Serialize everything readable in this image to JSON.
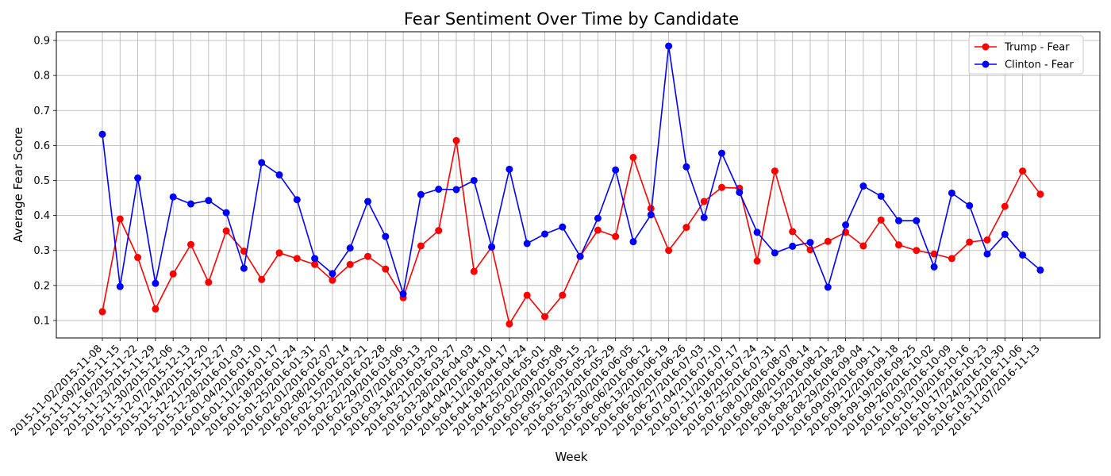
{
  "chart_data": {
    "type": "line",
    "title": "Fear Sentiment Over Time by Candidate",
    "xlabel": "Week",
    "ylabel": "Average Fear Score",
    "ylim": [
      0.05,
      0.925
    ],
    "yticks": [
      "0.1",
      "0.2",
      "0.3",
      "0.4",
      "0.5",
      "0.6",
      "0.7",
      "0.8",
      "0.9"
    ],
    "grid": true,
    "legend_position": "top-right",
    "categories": [
      "2015-11-02/2015-11-08",
      "2015-11-09/2015-11-15",
      "2015-11-16/2015-11-22",
      "2015-11-23/2015-11-29",
      "2015-11-30/2015-12-06",
      "2015-12-07/2015-12-13",
      "2015-12-14/2015-12-20",
      "2015-12-21/2015-12-27",
      "2015-12-28/2016-01-03",
      "2016-01-04/2016-01-10",
      "2016-01-11/2016-01-17",
      "2016-01-18/2016-01-24",
      "2016-01-25/2016-01-31",
      "2016-02-01/2016-02-07",
      "2016-02-08/2016-02-14",
      "2016-02-15/2016-02-21",
      "2016-02-22/2016-02-28",
      "2016-02-29/2016-03-06",
      "2016-03-07/2016-03-13",
      "2016-03-14/2016-03-20",
      "2016-03-21/2016-03-27",
      "2016-03-28/2016-04-03",
      "2016-04-04/2016-04-10",
      "2016-04-11/2016-04-17",
      "2016-04-18/2016-04-24",
      "2016-04-25/2016-05-01",
      "2016-05-02/2016-05-08",
      "2016-05-09/2016-05-15",
      "2016-05-16/2016-05-22",
      "2016-05-23/2016-05-29",
      "2016-05-30/2016-06-05",
      "2016-06-06/2016-06-12",
      "2016-06-13/2016-06-19",
      "2016-06-20/2016-06-26",
      "2016-06-27/2016-07-03",
      "2016-07-04/2016-07-10",
      "2016-07-11/2016-07-17",
      "2016-07-18/2016-07-24",
      "2016-07-25/2016-07-31",
      "2016-08-01/2016-08-07",
      "2016-08-08/2016-08-14",
      "2016-08-15/2016-08-21",
      "2016-08-22/2016-08-28",
      "2016-08-29/2016-09-04",
      "2016-09-05/2016-09-11",
      "2016-09-12/2016-09-18",
      "2016-09-19/2016-09-25",
      "2016-09-26/2016-10-02",
      "2016-10-03/2016-10-09",
      "2016-10-10/2016-10-16",
      "2016-10-17/2016-10-23",
      "2016-10-24/2016-10-30",
      "2016-10-31/2016-11-06",
      "2016-11-07/2016-11-13"
    ],
    "series": [
      {
        "name": "Trump - Fear",
        "color": "#ff0000",
        "values": [
          0.125,
          0.39,
          0.28,
          0.133,
          0.233,
          0.317,
          0.209,
          0.356,
          0.298,
          0.217,
          0.293,
          0.277,
          0.26,
          0.215,
          0.26,
          0.283,
          0.247,
          0.165,
          0.313,
          0.357,
          0.614,
          0.24,
          0.31,
          0.09,
          0.172,
          0.111,
          0.172,
          0.283,
          0.358,
          0.34,
          0.566,
          0.42,
          0.3,
          0.366,
          0.44,
          0.48,
          0.478,
          0.27,
          0.527,
          0.354,
          0.302,
          0.326,
          0.352,
          0.313,
          0.387,
          0.316,
          0.3,
          0.29,
          0.277,
          0.324,
          0.33,
          0.426,
          0.527,
          0.461
        ]
      },
      {
        "name": "Clinton - Fear",
        "color": "#0000ff",
        "values": [
          0.632,
          0.197,
          0.507,
          0.206,
          0.453,
          0.433,
          0.443,
          0.408,
          0.249,
          0.551,
          0.516,
          0.445,
          0.277,
          0.234,
          0.307,
          0.44,
          0.34,
          0.176,
          0.46,
          0.475,
          0.474,
          0.5,
          0.31,
          0.532,
          0.32,
          0.347,
          0.367,
          0.283,
          0.392,
          0.53,
          0.325,
          0.402,
          0.884,
          0.539,
          0.394,
          0.578,
          0.466,
          0.352,
          0.293,
          0.312,
          0.323,
          0.195,
          0.373,
          0.484,
          0.455,
          0.385,
          0.385,
          0.253,
          0.464,
          0.428,
          0.29,
          0.346,
          0.287,
          0.244
        ]
      }
    ]
  }
}
